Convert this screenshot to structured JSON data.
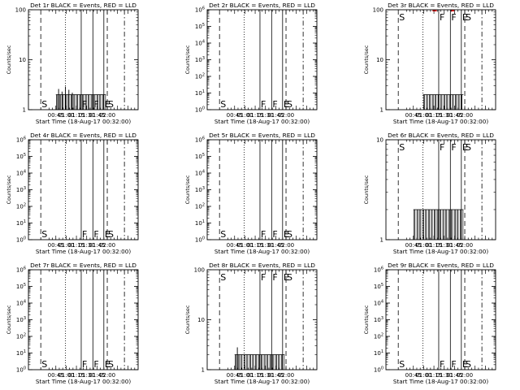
{
  "chart_data": [
    {
      "type": "line",
      "title": "Det 1r BLACK = Events, RED = LLD",
      "xlabel": "Start Time (18-Aug-17 00:32:00)",
      "ylabel": "Counts/sec",
      "yscale": "log",
      "ylim": [
        1,
        100
      ],
      "yticks": [
        {
          "v": 1,
          "t": "1"
        },
        {
          "v": 10,
          "t": "10"
        },
        {
          "v": 100,
          "t": "100"
        }
      ],
      "xticks": [
        "00:45",
        "01:00",
        "01:15",
        "01:30",
        "01:45",
        "02:00"
      ],
      "markers": [
        {
          "t": "S",
          "x": -22
        },
        {
          "t": "F",
          "x": 37
        },
        {
          "t": "F",
          "x": 54
        },
        {
          "t": "E",
          "x": 70
        },
        {
          "t": "S",
          "x": 75
        }
      ],
      "dotted_x": 14,
      "events": {
        "x0": 0,
        "x1": 73,
        "level": 2,
        "spikes": [
          2.6,
          2.3,
          2.9,
          2.5,
          2.2
        ]
      },
      "lld": []
    },
    {
      "type": "line",
      "title": "Det 2r BLACK = Events, RED = LLD",
      "xlabel": "Start Time (18-Aug-17 00:32:00)",
      "ylabel": "Counts/sec",
      "yscale": "log",
      "ylim": [
        1,
        1000000
      ],
      "yticks": [
        {
          "v": 1,
          "t": "10^0"
        },
        {
          "v": 10,
          "t": "10^1"
        },
        {
          "v": 100,
          "t": "10^2"
        },
        {
          "v": 1000,
          "t": "10^3"
        },
        {
          "v": 10000,
          "t": "10^4"
        },
        {
          "v": 100000,
          "t": "10^5"
        },
        {
          "v": 1000000,
          "t": "10^6"
        }
      ],
      "xticks": [
        "00:45",
        "01:00",
        "01:15",
        "01:30",
        "01:45",
        "02:00"
      ],
      "markers": [
        {
          "t": "S",
          "x": -22
        },
        {
          "t": "F",
          "x": 37
        },
        {
          "t": "F",
          "x": 54
        },
        {
          "t": "E",
          "x": 70
        },
        {
          "t": "S",
          "x": 75
        }
      ],
      "dotted_x": 14,
      "events": null,
      "lld": []
    },
    {
      "type": "line",
      "title": "Det 3r BLACK = Events, RED = LLD",
      "xlabel": "Start Time (18-Aug-17 00:32:00)",
      "ylabel": "Counts/sec",
      "yscale": "log",
      "ylim": [
        1,
        100
      ],
      "yticks": [
        {
          "v": 1,
          "t": "1"
        },
        {
          "v": 10,
          "t": "10"
        },
        {
          "v": 100,
          "t": "100"
        }
      ],
      "xticks": [
        "00:45",
        "01:00",
        "01:15",
        "01:30",
        "01:45",
        "02:00"
      ],
      "markers": [
        {
          "t": "S",
          "x": -22
        },
        {
          "t": "F",
          "x": 37
        },
        {
          "t": "F",
          "x": 54
        },
        {
          "t": "E",
          "x": 70
        },
        {
          "t": "S",
          "x": 75
        }
      ],
      "dotted_x": 14,
      "events": {
        "x0": 14,
        "x1": 73,
        "level": 2,
        "spikes": []
      },
      "lld": [
        [
          28,
          34
        ],
        [
          55,
          60
        ]
      ]
    },
    {
      "type": "line",
      "title": "Det 4r BLACK = Events, RED = LLD",
      "xlabel": "Start Time (18-Aug-17 00:32:00)",
      "ylabel": "Counts/sec",
      "yscale": "log",
      "ylim": [
        1,
        1000000
      ],
      "yticks": [
        {
          "v": 1,
          "t": "10^0"
        },
        {
          "v": 10,
          "t": "10^1"
        },
        {
          "v": 100,
          "t": "10^2"
        },
        {
          "v": 1000,
          "t": "10^3"
        },
        {
          "v": 10000,
          "t": "10^4"
        },
        {
          "v": 100000,
          "t": "10^5"
        },
        {
          "v": 1000000,
          "t": "10^6"
        }
      ],
      "xticks": [
        "00:45",
        "01:00",
        "01:15",
        "01:30",
        "01:45",
        "02:00"
      ],
      "markers": [
        {
          "t": "S",
          "x": -22
        },
        {
          "t": "F",
          "x": 37
        },
        {
          "t": "F",
          "x": 54
        },
        {
          "t": "E",
          "x": 70
        },
        {
          "t": "S",
          "x": 75
        }
      ],
      "dotted_x": 14,
      "events": null,
      "lld": []
    },
    {
      "type": "line",
      "title": "Det 5r BLACK = Events, RED = LLD",
      "xlabel": "Start Time (18-Aug-17 00:32:00)",
      "ylabel": "Counts/sec",
      "yscale": "log",
      "ylim": [
        1,
        1000000
      ],
      "yticks": [
        {
          "v": 1,
          "t": "10^0"
        },
        {
          "v": 10,
          "t": "10^1"
        },
        {
          "v": 100,
          "t": "10^2"
        },
        {
          "v": 1000,
          "t": "10^3"
        },
        {
          "v": 10000,
          "t": "10^4"
        },
        {
          "v": 100000,
          "t": "10^5"
        },
        {
          "v": 1000000,
          "t": "10^6"
        }
      ],
      "xticks": [
        "00:45",
        "01:00",
        "01:15",
        "01:30",
        "01:45",
        "02:00"
      ],
      "markers": [
        {
          "t": "S",
          "x": -22
        },
        {
          "t": "F",
          "x": 37
        },
        {
          "t": "F",
          "x": 54
        },
        {
          "t": "E",
          "x": 70
        },
        {
          "t": "S",
          "x": 75
        }
      ],
      "dotted_x": 14,
      "events": null,
      "lld": []
    },
    {
      "type": "line",
      "title": "Det 6r BLACK = Events, RED = LLD",
      "xlabel": "Start Time (18-Aug-17 00:32:00)",
      "ylabel": "Counts/sec",
      "yscale": "log",
      "ylim": [
        1,
        10
      ],
      "yticks": [
        {
          "v": 1,
          "t": "1"
        },
        {
          "v": 10,
          "t": "10"
        }
      ],
      "xticks": [
        "00:45",
        "01:00",
        "01:15",
        "01:30",
        "01:45",
        "02:00"
      ],
      "markers": [
        {
          "t": "S",
          "x": -22
        },
        {
          "t": "F",
          "x": 37
        },
        {
          "t": "F",
          "x": 54
        },
        {
          "t": "E",
          "x": 70
        },
        {
          "t": "S",
          "x": 75
        }
      ],
      "dotted_x": 14,
      "events": {
        "x0": 0,
        "x1": 73,
        "level": 2,
        "spikes": []
      },
      "lld": []
    },
    {
      "type": "line",
      "title": "Det 7r BLACK = Events, RED = LLD",
      "xlabel": "Start Time (18-Aug-17 00:32:00)",
      "ylabel": "Counts/sec",
      "yscale": "log",
      "ylim": [
        1,
        1000000
      ],
      "yticks": [
        {
          "v": 1,
          "t": "10^0"
        },
        {
          "v": 10,
          "t": "10^1"
        },
        {
          "v": 100,
          "t": "10^2"
        },
        {
          "v": 1000,
          "t": "10^3"
        },
        {
          "v": 10000,
          "t": "10^4"
        },
        {
          "v": 100000,
          "t": "10^5"
        },
        {
          "v": 1000000,
          "t": "10^6"
        }
      ],
      "xticks": [
        "00:45",
        "01:00",
        "01:15",
        "01:30",
        "01:45",
        "02:00"
      ],
      "markers": [
        {
          "t": "S",
          "x": -22
        },
        {
          "t": "F",
          "x": 37
        },
        {
          "t": "F",
          "x": 54
        },
        {
          "t": "E",
          "x": 70
        },
        {
          "t": "S",
          "x": 75
        }
      ],
      "dotted_x": 14,
      "events": null,
      "lld": []
    },
    {
      "type": "line",
      "title": "Det 8r BLACK = Events, RED = LLD",
      "xlabel": "Start Time (18-Aug-17 00:32:00)",
      "ylabel": "Counts/sec",
      "yscale": "log",
      "ylim": [
        1,
        100
      ],
      "yticks": [
        {
          "v": 1,
          "t": "1"
        },
        {
          "v": 10,
          "t": "10"
        },
        {
          "v": 100,
          "t": "100"
        }
      ],
      "xticks": [
        "00:45",
        "01:00",
        "01:15",
        "01:30",
        "01:45",
        "02:00"
      ],
      "markers": [
        {
          "t": "S",
          "x": -22
        },
        {
          "t": "F",
          "x": 37
        },
        {
          "t": "F",
          "x": 54
        },
        {
          "t": "E",
          "x": 70
        },
        {
          "t": "S",
          "x": 75
        }
      ],
      "dotted_x": 14,
      "events": {
        "x0": 0,
        "x1": 73,
        "level": 2,
        "spikes": [
          2.8
        ]
      },
      "lld": []
    },
    {
      "type": "line",
      "title": "Det 9r BLACK = Events, RED = LLD",
      "xlabel": "Start Time (18-Aug-17 00:32:00)",
      "ylabel": "Counts/sec",
      "yscale": "log",
      "ylim": [
        1,
        1000000
      ],
      "yticks": [
        {
          "v": 1,
          "t": "10^0"
        },
        {
          "v": 10,
          "t": "10^1"
        },
        {
          "v": 100,
          "t": "10^2"
        },
        {
          "v": 1000,
          "t": "10^3"
        },
        {
          "v": 10000,
          "t": "10^4"
        },
        {
          "v": 100000,
          "t": "10^5"
        },
        {
          "v": 1000000,
          "t": "10^6"
        }
      ],
      "xticks": [
        "00:45",
        "01:00",
        "01:15",
        "01:30",
        "01:45",
        "02:00"
      ],
      "markers": [
        {
          "t": "S",
          "x": -22
        },
        {
          "t": "F",
          "x": 37
        },
        {
          "t": "F",
          "x": 54
        },
        {
          "t": "E",
          "x": 70
        },
        {
          "t": "S",
          "x": 75
        }
      ],
      "dotted_x": 14,
      "events": null,
      "lld": []
    }
  ],
  "colors": {
    "events": "#000000",
    "lld": "#ff0000",
    "axes": "#000000",
    "background": "#ffffff"
  }
}
